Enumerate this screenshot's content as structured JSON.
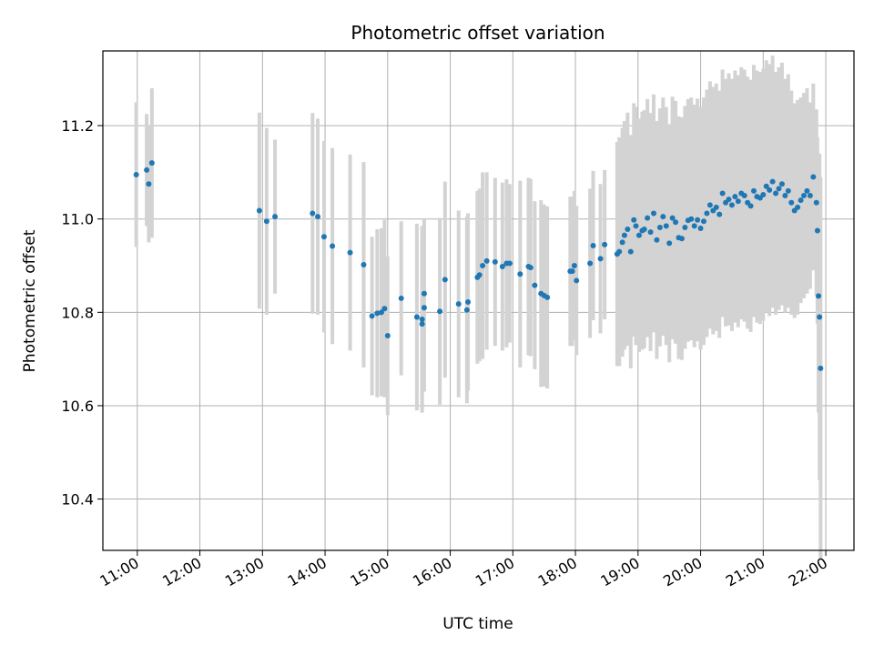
{
  "chart_data": {
    "type": "scatter",
    "title": "Photometric offset variation",
    "xlabel": "UTC time",
    "ylabel": "Photometric offset",
    "x_ticks": [
      "11:00",
      "12:00",
      "13:00",
      "14:00",
      "15:00",
      "16:00",
      "17:00",
      "18:00",
      "19:00",
      "20:00",
      "21:00",
      "22:00"
    ],
    "y_ticks": [
      "10.4",
      "10.6",
      "10.8",
      "11.0",
      "11.2"
    ],
    "xlim": [
      "10:27",
      "22:27"
    ],
    "ylim": [
      10.29,
      11.36
    ],
    "grid": true,
    "colors": {
      "points": "#1f77b4",
      "errorbars": "#d3d3d3",
      "grid": "#b0b0b0"
    },
    "series": [
      {
        "x": [
          "10:59",
          "11:09",
          "11:11",
          "11:14",
          "12:57",
          "13:04",
          "13:12",
          "13:48",
          "13:53",
          "13:59",
          "14:07",
          "14:24",
          "14:37",
          "14:45",
          "14:50",
          "14:54",
          "14:57",
          "15:00",
          "15:13",
          "15:28",
          "15:33",
          "15:33",
          "15:35",
          "15:35",
          "15:50",
          "15:55",
          "16:08",
          "16:16",
          "16:17",
          "16:26",
          "16:28",
          "16:31",
          "16:35",
          "16:43",
          "16:50",
          "16:54",
          "16:57",
          "17:07",
          "17:15",
          "17:17",
          "17:21",
          "17:27",
          "17:30",
          "17:33",
          "17:55",
          "17:57",
          "17:59",
          "18:01",
          "18:14",
          "18:17",
          "18:24",
          "18:28",
          "18:40",
          "18:42",
          "18:45",
          "18:47",
          "18:50",
          "18:53",
          "18:56",
          "18:58",
          "19:01",
          "19:04",
          "19:06",
          "19:09",
          "19:12",
          "19:15",
          "19:18",
          "19:21",
          "19:24",
          "19:27",
          "19:30",
          "19:33",
          "19:36",
          "19:39",
          "19:42",
          "19:45",
          "19:48",
          "19:51",
          "19:54",
          "19:57",
          "20:00",
          "20:03",
          "20:06",
          "20:09",
          "20:12",
          "20:15",
          "20:18",
          "20:21",
          "20:24",
          "20:27",
          "20:30",
          "20:33",
          "20:36",
          "20:39",
          "20:42",
          "20:45",
          "20:48",
          "20:51",
          "20:54",
          "20:57",
          "21:00",
          "21:03",
          "21:06",
          "21:09",
          "21:12",
          "21:15",
          "21:18",
          "21:21",
          "21:24",
          "21:27",
          "21:30",
          "21:33",
          "21:36",
          "21:39",
          "21:42",
          "21:45",
          "21:48",
          "21:51",
          "21:52",
          "21:53",
          "21:54",
          "21:55"
        ],
        "y": [
          11.095,
          11.105,
          11.075,
          11.12,
          11.018,
          10.995,
          11.005,
          11.012,
          11.005,
          10.962,
          10.942,
          10.928,
          10.902,
          10.792,
          10.798,
          10.8,
          10.808,
          10.75,
          10.83,
          10.79,
          10.785,
          10.775,
          10.81,
          10.84,
          10.802,
          10.87,
          10.818,
          10.805,
          10.822,
          10.875,
          10.88,
          10.9,
          10.91,
          10.908,
          10.898,
          10.905,
          10.905,
          10.882,
          10.898,
          10.896,
          10.858,
          10.84,
          10.836,
          10.832,
          10.888,
          10.888,
          10.9,
          10.868,
          10.905,
          10.943,
          10.915,
          10.945,
          10.925,
          10.93,
          10.95,
          10.965,
          10.978,
          10.93,
          10.998,
          10.985,
          10.965,
          10.975,
          10.978,
          11.002,
          10.972,
          11.012,
          10.955,
          10.982,
          11.005,
          10.985,
          10.948,
          11.002,
          10.993,
          10.96,
          10.958,
          10.982,
          10.997,
          11.0,
          10.985,
          10.998,
          10.98,
          10.995,
          11.012,
          11.03,
          11.018,
          11.025,
          11.01,
          11.055,
          11.035,
          11.042,
          11.03,
          11.048,
          11.038,
          11.055,
          11.05,
          11.035,
          11.028,
          11.06,
          11.048,
          11.045,
          11.052,
          11.07,
          11.062,
          11.08,
          11.055,
          11.065,
          11.075,
          11.05,
          11.06,
          11.035,
          11.018,
          11.025,
          11.04,
          11.05,
          11.06,
          11.05,
          11.09,
          11.035,
          10.975,
          10.835,
          10.79,
          10.68
        ],
        "err": [
          0.155,
          0.12,
          0.125,
          0.16,
          0.21,
          0.2,
          0.165,
          0.215,
          0.21,
          0.205,
          0.21,
          0.21,
          0.22,
          0.17,
          0.18,
          0.18,
          0.19,
          0.17,
          0.165,
          0.2,
          0.2,
          0.18,
          0.18,
          0.16,
          0.2,
          0.21,
          0.2,
          0.2,
          0.19,
          0.185,
          0.185,
          0.2,
          0.19,
          0.18,
          0.18,
          0.18,
          0.17,
          0.2,
          0.19,
          0.19,
          0.18,
          0.2,
          0.195,
          0.195,
          0.16,
          0.16,
          0.16,
          0.16,
          0.16,
          0.16,
          0.16,
          0.16,
          0.24,
          0.245,
          0.245,
          0.245,
          0.25,
          0.25,
          0.25,
          0.255,
          0.25,
          0.255,
          0.255,
          0.255,
          0.255,
          0.255,
          0.255,
          0.255,
          0.255,
          0.255,
          0.255,
          0.26,
          0.26,
          0.26,
          0.26,
          0.26,
          0.26,
          0.26,
          0.26,
          0.26,
          0.26,
          0.265,
          0.265,
          0.265,
          0.265,
          0.265,
          0.265,
          0.265,
          0.265,
          0.27,
          0.27,
          0.27,
          0.27,
          0.27,
          0.27,
          0.27,
          0.27,
          0.27,
          0.27,
          0.27,
          0.27,
          0.27,
          0.27,
          0.27,
          0.26,
          0.26,
          0.26,
          0.25,
          0.25,
          0.24,
          0.23,
          0.23,
          0.22,
          0.22,
          0.22,
          0.2,
          0.2,
          0.2,
          0.2,
          0.25,
          0.35,
          0.41
        ]
      }
    ]
  }
}
